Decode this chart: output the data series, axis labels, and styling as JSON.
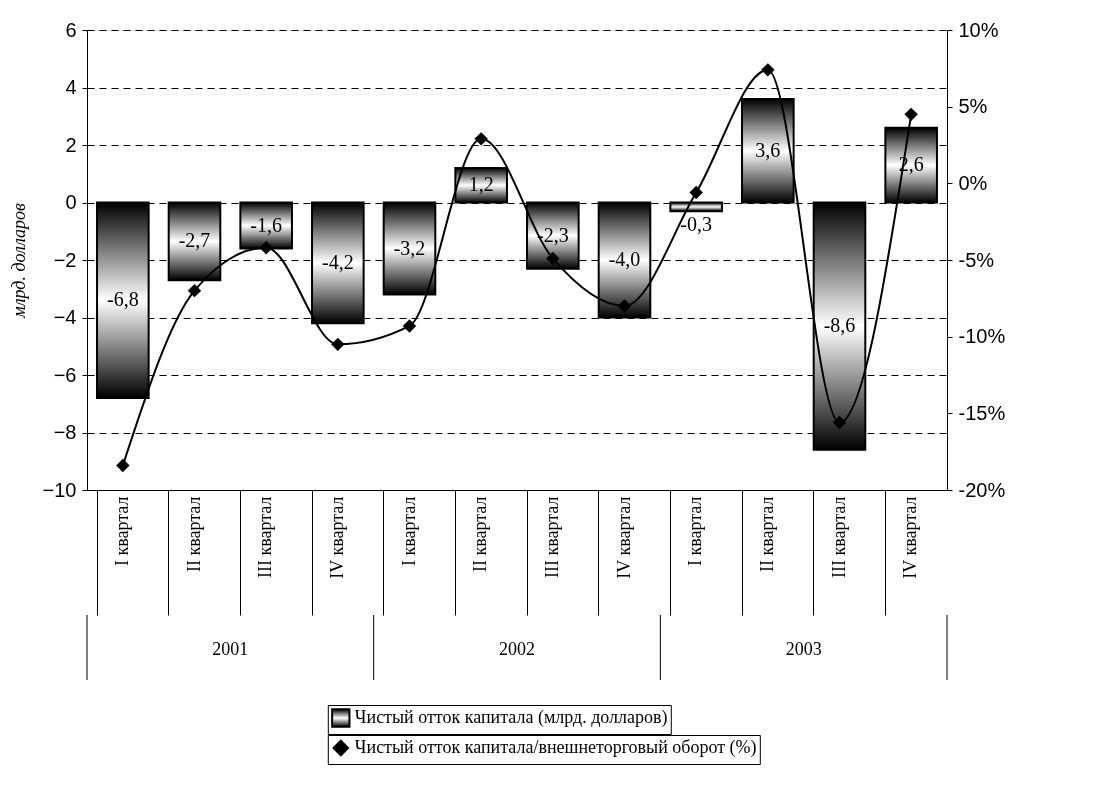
{
  "chart_data": {
    "type": "bar",
    "ylabel": "млрд. долларов",
    "categories": [
      "I квартал",
      "II квартал",
      "III квартал",
      "IV квартал",
      "I квартал",
      "II квартал",
      "III квартал",
      "IV квартал",
      "I квартал",
      "II квартал",
      "III квартал",
      "IV квартал"
    ],
    "series": [
      {
        "name": "Чистый отток капитала (млрд. долларов)",
        "color": "#000000",
        "values": [
          -6.8,
          -2.7,
          -1.6,
          -4.2,
          -3.2,
          1.2,
          -2.3,
          -4.0,
          -0.3,
          3.6,
          -8.6,
          2.6
        ],
        "value_labels": [
          "-6,8",
          "-2,7",
          "-1,6",
          "-4,2",
          "-3,2",
          "1,2",
          "-2,3",
          "-4,0",
          "-0,3",
          "3,6",
          "-8,6",
          "2,6"
        ]
      },
      {
        "name": "Чистый отток капитала/внешнеторговый оборот (%)",
        "type": "line",
        "axis": "y2",
        "color": "#000000",
        "values": [
          -18.4,
          -7.0,
          -4.2,
          -10.5,
          -9.3,
          2.9,
          -4.9,
          -8.0,
          -0.6,
          7.4,
          -15.6,
          4.5
        ]
      }
    ],
    "annotations": [
      "2001",
      "2002",
      "2003"
    ],
    "ylim": [
      -10,
      6
    ],
    "yticks": [
      -10,
      -8,
      -6,
      -4,
      -2,
      0,
      2,
      4,
      6
    ],
    "y2lim": [
      -20,
      10
    ],
    "y2ticks": [
      {
        "value": -20,
        "label": "-20%"
      },
      {
        "value": -15,
        "label": "-15%"
      },
      {
        "value": -10,
        "label": "-10%"
      },
      {
        "value": -5,
        "label": "-5%"
      },
      {
        "value": 0,
        "label": "0%"
      },
      {
        "value": 5,
        "label": "5%"
      },
      {
        "value": 10,
        "label": "10%"
      }
    ],
    "grid": "y",
    "legend": "bottom",
    "marker": "diamond",
    "line_style": "solid"
  }
}
